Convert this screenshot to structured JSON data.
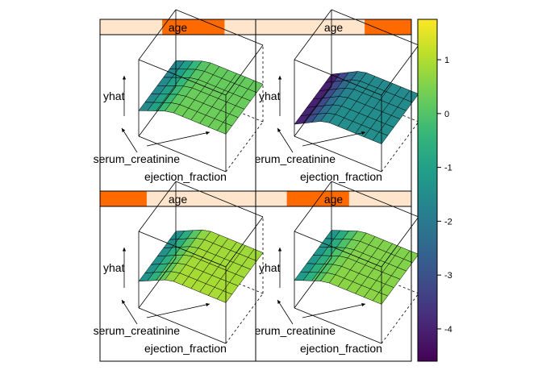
{
  "chart_data": {
    "type": "surface",
    "colorscale": "viridis",
    "colorbar": {
      "range": [
        -4.6,
        1.75
      ],
      "ticks": [
        1,
        0,
        -1,
        -2,
        -3,
        -4
      ],
      "tick_labels": [
        "1",
        "0",
        "-1",
        "-2",
        "-3",
        "-4"
      ]
    },
    "strip_colors": {
      "background": "#ffe5cc",
      "indicator": "#ff6a00"
    },
    "panels": [
      {
        "strip_label": "age",
        "strip_range": [
          0.4,
          0.8
        ],
        "zlabel": "yhat",
        "xlabel": "ejection_fraction",
        "ylabel": "serum_creatinine",
        "surface_low": -2.0,
        "surface_high": 0.2
      },
      {
        "strip_label": "age",
        "strip_range": [
          0.7,
          1.0
        ],
        "zlabel": "yhat",
        "xlabel": "ejection_fraction",
        "ylabel": "serum_creatinine",
        "surface_low": -4.5,
        "surface_high": -1.6
      },
      {
        "strip_label": "age",
        "strip_range": [
          0.0,
          0.3
        ],
        "zlabel": "yhat",
        "xlabel": "ejection_fraction",
        "ylabel": "serum_creatinine",
        "surface_low": -1.8,
        "surface_high": 0.8
      },
      {
        "strip_label": "age",
        "strip_range": [
          0.2,
          0.6
        ],
        "zlabel": "yhat",
        "xlabel": "ejection_fraction",
        "ylabel": "serum_creatinine",
        "surface_low": -1.6,
        "surface_high": 0.5
      }
    ]
  }
}
